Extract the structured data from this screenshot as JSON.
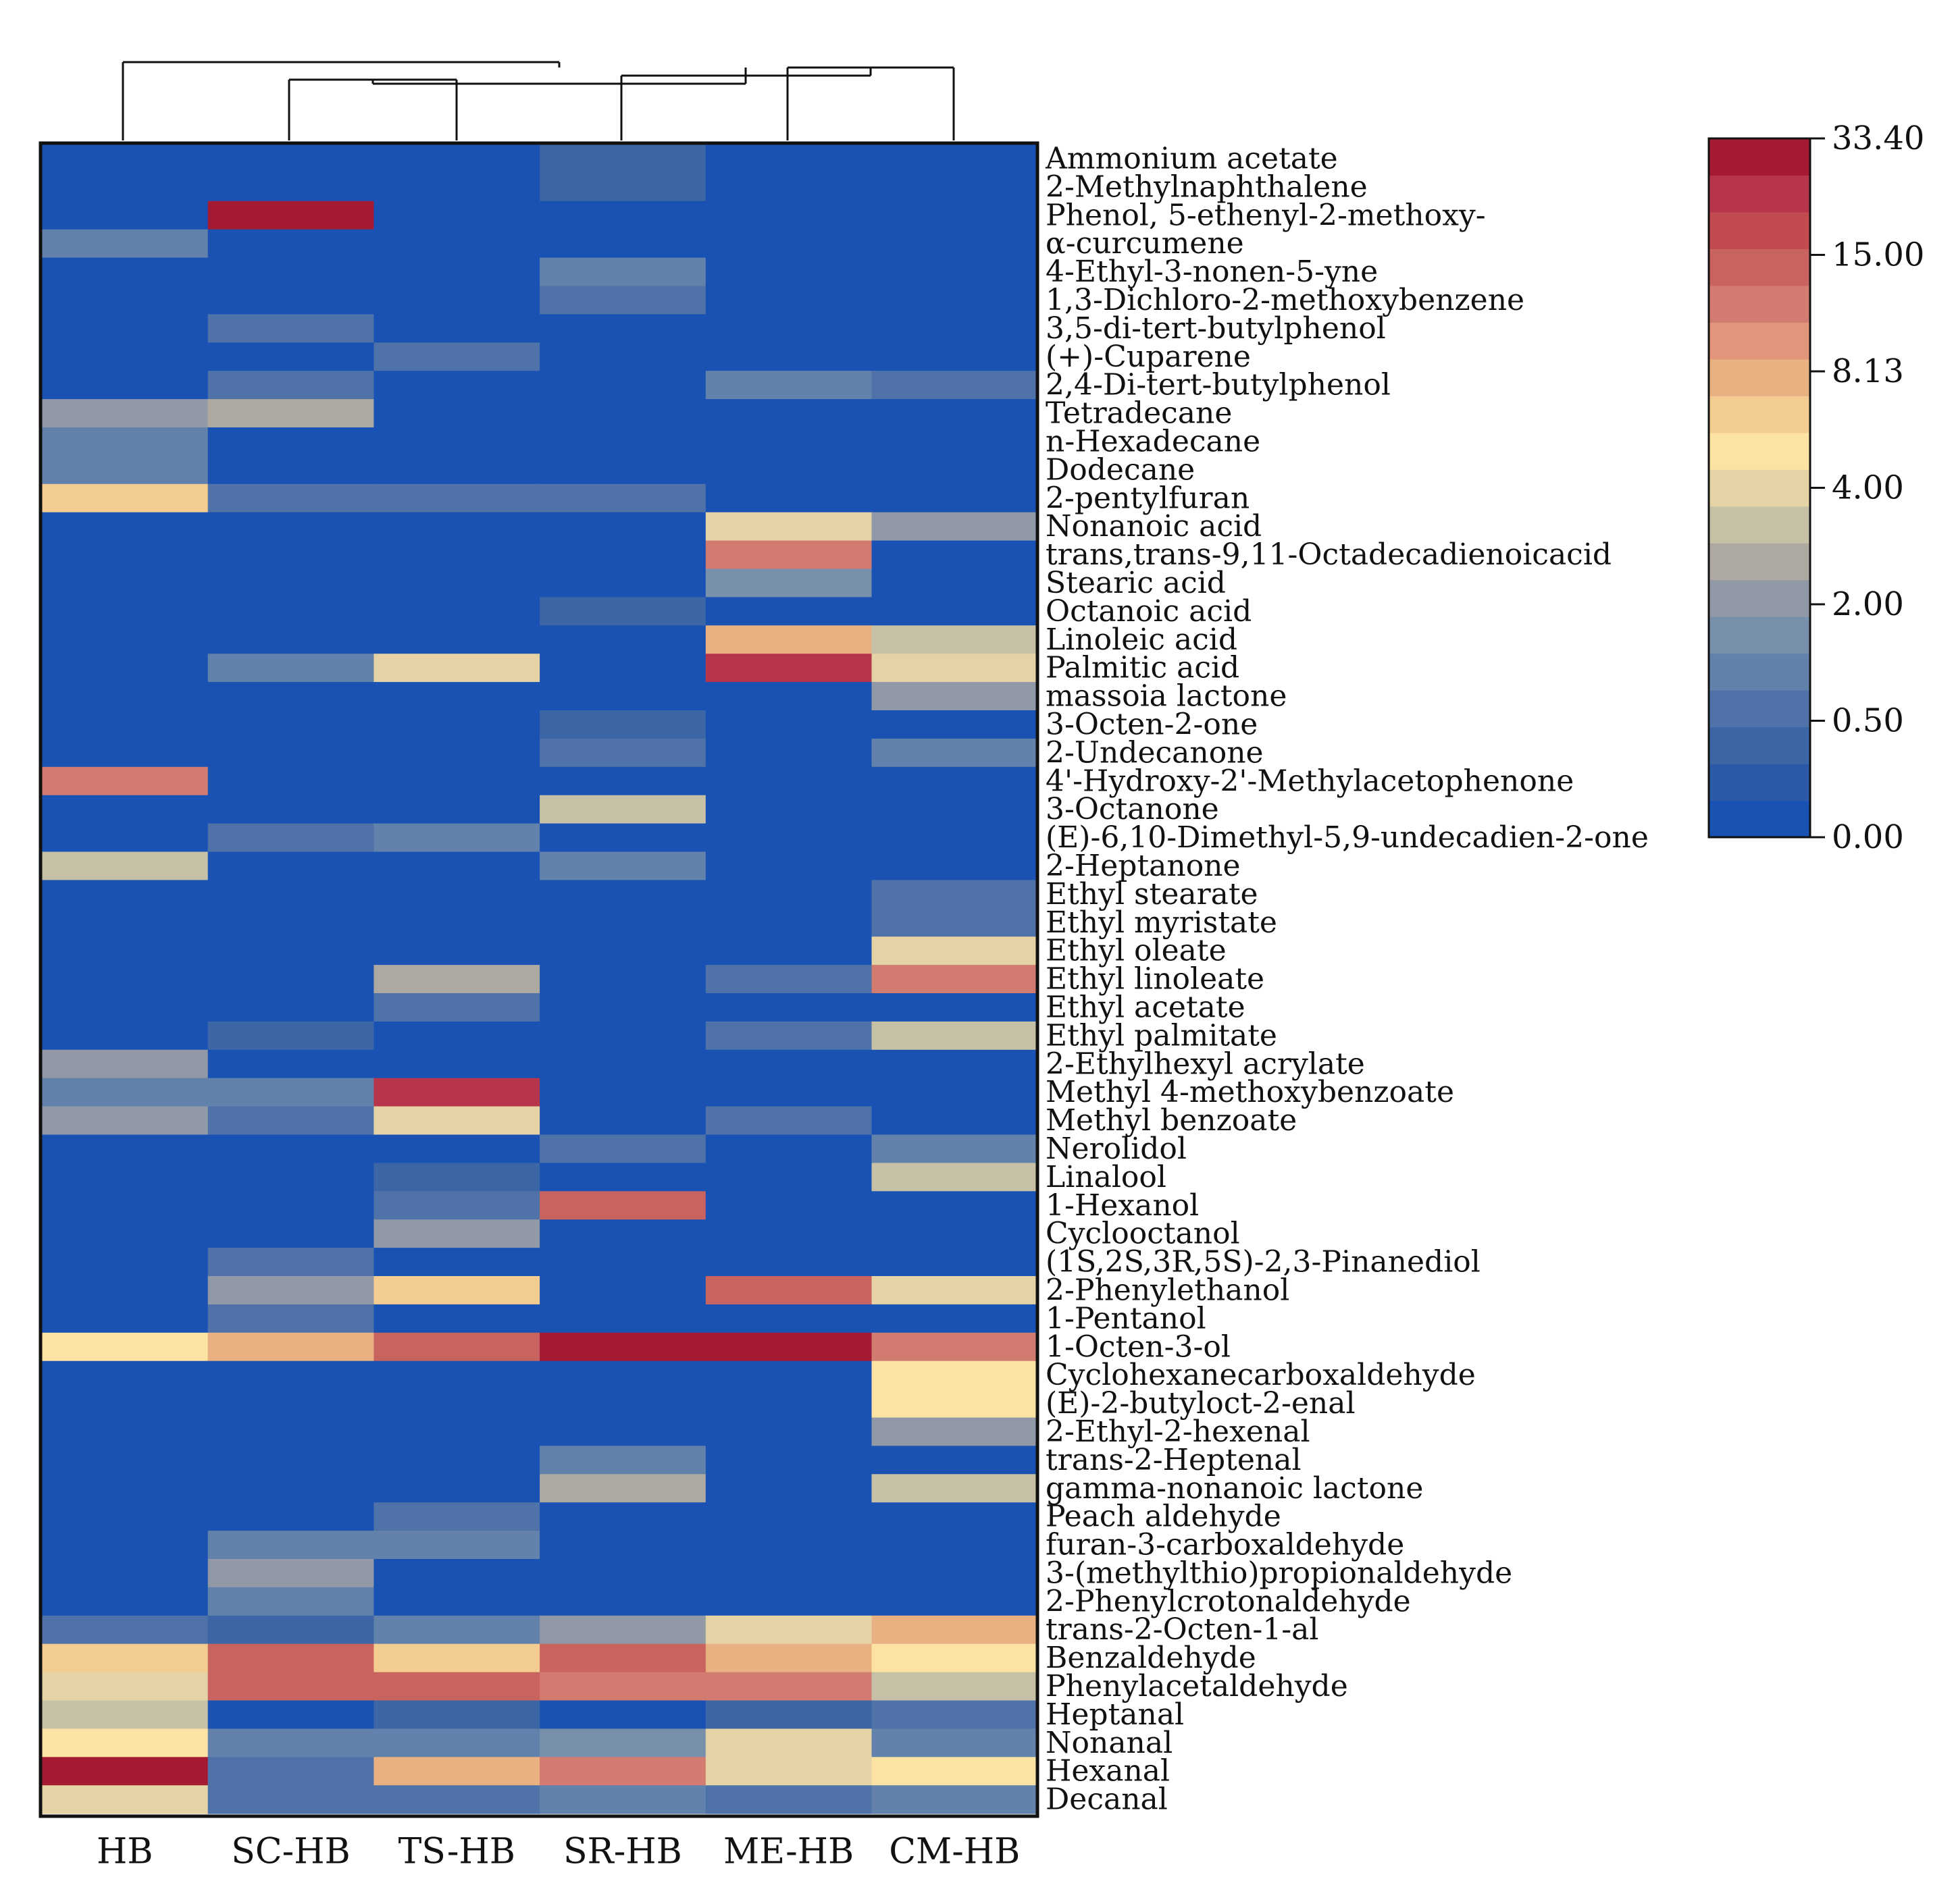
{
  "chart_data": {
    "type": "heatmap",
    "title": "",
    "columns": [
      "HB",
      "SC-HB",
      "TS-HB",
      "SR-HB",
      "ME-HB",
      "CM-HB"
    ],
    "rows": [
      "Ammonium acetate",
      "2-Methylnaphthalene",
      "Phenol, 5-ethenyl-2-methoxy-",
      "α-curcumene",
      "4-Ethyl-3-nonen-5-yne",
      "1,3-Dichloro-2-methoxybenzene",
      "3,5-di-tert-butylphenol",
      "(+)-Cuparene",
      "2,4-Di-tert-butylphenol",
      "Tetradecane",
      "n-Hexadecane",
      "Dodecane",
      "2-pentylfuran",
      "Nonanoic acid",
      "trans,trans-9,11-Octadecadienoicacid",
      "Stearic acid",
      "Octanoic acid",
      "Linoleic acid",
      "Palmitic acid",
      "massoia lactone",
      "3-Octen-2-one",
      "2-Undecanone",
      "4'-Hydroxy-2'-Methylacetophenone",
      "3-Octanone",
      "(E)-6,10-Dimethyl-5,9-undecadien-2-one",
      "2-Heptanone",
      "Ethyl stearate",
      "Ethyl myristate",
      "Ethyl oleate",
      "Ethyl linoleate",
      "Ethyl acetate",
      "Ethyl palmitate",
      "2-Ethylhexyl acrylate",
      "Methyl 4-methoxybenzoate",
      "Methyl benzoate",
      "Nerolidol",
      "Linalool",
      "1-Hexanol",
      "Cyclooctanol",
      "(1S,2S,3R,5S)-2,3-Pinanediol",
      "2-Phenylethanol",
      "1-Pentanol",
      "1-Octen-3-ol",
      "Cyclohexanecarboxaldehyde",
      "(E)-2-butyloct-2-enal",
      "2-Ethyl-2-hexenal",
      "trans-2-Heptenal",
      "gamma-nonanoic lactone",
      "Peach aldehyde",
      "furan-3-carboxaldehyde",
      "3-(methylthio)propionaldehyde",
      "2-Phenylcrotonaldehyde",
      "trans-2-Octen-1-al",
      "Benzaldehyde",
      "Phenylacetaldehyde",
      "Heptanal",
      "Nonanal",
      "Hexanal",
      "Decanal"
    ],
    "values": [
      [
        0,
        0,
        0,
        0.4,
        0,
        0
      ],
      [
        0,
        0,
        0,
        0.4,
        0,
        0
      ],
      [
        0,
        33.4,
        0,
        0,
        0,
        0
      ],
      [
        1.2,
        0,
        0,
        0,
        0,
        0
      ],
      [
        0,
        0,
        0,
        0.8,
        0,
        0
      ],
      [
        0,
        0,
        0,
        0.7,
        0,
        0
      ],
      [
        0,
        0.5,
        0,
        0,
        0,
        0
      ],
      [
        0,
        0,
        0.5,
        0,
        0,
        0
      ],
      [
        0,
        0.5,
        0,
        0,
        1.2,
        0.5
      ],
      [
        2.0,
        2.8,
        0,
        0,
        0,
        0
      ],
      [
        1.2,
        0,
        0,
        0,
        0,
        0
      ],
      [
        0.8,
        0,
        0,
        0,
        0,
        0
      ],
      [
        7.0,
        0.7,
        0.5,
        0.7,
        0,
        0
      ],
      [
        0,
        0,
        0,
        0,
        4.3,
        2.2
      ],
      [
        0,
        0,
        0,
        0,
        12.0,
        0
      ],
      [
        0,
        0,
        0,
        0,
        1.7,
        0
      ],
      [
        0,
        0,
        0,
        0.4,
        0,
        0
      ],
      [
        0,
        0,
        0,
        0,
        9.0,
        3.0
      ],
      [
        0,
        1.0,
        4.3,
        0,
        25.0,
        4.5
      ],
      [
        0,
        0,
        0,
        0,
        0,
        2.3
      ],
      [
        0,
        0,
        0,
        0.4,
        0,
        0
      ],
      [
        0,
        0,
        0,
        0.7,
        0,
        0.8
      ],
      [
        12.0,
        0,
        0,
        0,
        0,
        0
      ],
      [
        0,
        0,
        0,
        3.0,
        0,
        0
      ],
      [
        0,
        0.5,
        1.0,
        0,
        0,
        0
      ],
      [
        3.2,
        0,
        0,
        1.0,
        0,
        0
      ],
      [
        0,
        0,
        0,
        0,
        0,
        0.5
      ],
      [
        0,
        0,
        0,
        0,
        0,
        0.5
      ],
      [
        0,
        0,
        0,
        0,
        0,
        4.3
      ],
      [
        0,
        0,
        2.5,
        0,
        0.5,
        12.0
      ],
      [
        0,
        0,
        0.7,
        0,
        0,
        0
      ],
      [
        0,
        0.3,
        0,
        0,
        0.7,
        3.0
      ],
      [
        2.0,
        0,
        0,
        0,
        0,
        0
      ],
      [
        1.2,
        1.0,
        25.0,
        0,
        0,
        0
      ],
      [
        1.8,
        0.5,
        4.3,
        0,
        0.7,
        0
      ],
      [
        0,
        0,
        0,
        0.5,
        0,
        0.8
      ],
      [
        0,
        0,
        0.3,
        0,
        0,
        3.0
      ],
      [
        0,
        0,
        0.7,
        15.0,
        0,
        0
      ],
      [
        0,
        0,
        1.8,
        0,
        0,
        0
      ],
      [
        0,
        0.5,
        0,
        0,
        0,
        0
      ],
      [
        0,
        2.2,
        6.5,
        0,
        15.0,
        4.2
      ],
      [
        0,
        0.5,
        0,
        0,
        0,
        0
      ],
      [
        5.0,
        8.5,
        15.0,
        33.4,
        33.4,
        12.0
      ],
      [
        0,
        0,
        0,
        0,
        0,
        5.5
      ],
      [
        0,
        0,
        0,
        0,
        0,
        5.5
      ],
      [
        0,
        0,
        0,
        0,
        0,
        2.3
      ],
      [
        0,
        0,
        0,
        0.8,
        0,
        0
      ],
      [
        0,
        0,
        0,
        2.5,
        0,
        3.0
      ],
      [
        0,
        0,
        0.5,
        0,
        0,
        0
      ],
      [
        0,
        0.8,
        1.2,
        0,
        0,
        0
      ],
      [
        0,
        1.8,
        0,
        0,
        0,
        0
      ],
      [
        0,
        1.2,
        0,
        0,
        0,
        0
      ],
      [
        0.7,
        0.3,
        1.0,
        2.0,
        4.3,
        9.0
      ],
      [
        6.5,
        15.0,
        6.5,
        15.0,
        9.0,
        5.5
      ],
      [
        4.3,
        15.0,
        15.0,
        12.0,
        12.0,
        3.5
      ],
      [
        3.5,
        0,
        0.3,
        0,
        0.3,
        0.5
      ],
      [
        5.5,
        1.0,
        1.0,
        1.6,
        4.3,
        1.0
      ],
      [
        33.4,
        0.7,
        9.0,
        12.0,
        4.3,
        6.0
      ],
      [
        4.3,
        0.7,
        0.7,
        1.0,
        0.5,
        1.0
      ]
    ],
    "colorbar": {
      "ticks": [
        "0.00",
        "0.50",
        "2.00",
        "4.00",
        "8.13",
        "15.00",
        "33.40"
      ],
      "colors": [
        "#1a52b4",
        "#2d5aa8",
        "#3d66a6",
        "#4f73a8",
        "#6282ab",
        "#7890ab",
        "#9299a6",
        "#ada9a0",
        "#c6c1a6",
        "#e5d3a5",
        "#fce2a3",
        "#f2cc90",
        "#e9b182",
        "#e1957a",
        "#d27b70",
        "#c96360",
        "#c24b51",
        "#b6354a",
        "#a51a33"
      ]
    }
  }
}
